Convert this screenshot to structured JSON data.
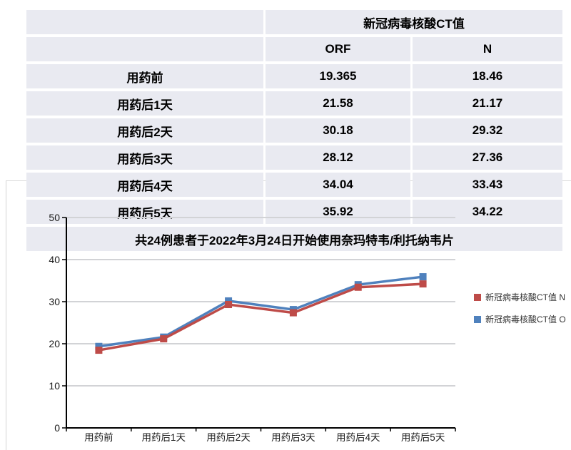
{
  "table": {
    "header_group": "新冠病毒核酸CT值",
    "columns": [
      "ORF",
      "N"
    ],
    "rows": [
      {
        "label": "用药前",
        "orf": "19.365",
        "n": "18.46"
      },
      {
        "label": "用药后1天",
        "orf": "21.58",
        "n": "21.17"
      },
      {
        "label": "用药后2天",
        "orf": "30.18",
        "n": "29.32"
      },
      {
        "label": "用药后3天",
        "orf": "28.12",
        "n": "27.36"
      },
      {
        "label": "用药后4天",
        "orf": "34.04",
        "n": "33.43"
      },
      {
        "label": "用药后5天",
        "orf": "35.92",
        "n": "34.22"
      }
    ],
    "note": "共24例患者于2022年3月24日开始使用奈玛特韦/利托纳韦片"
  },
  "chart_data": {
    "type": "line",
    "title": "",
    "xlabel": "",
    "ylabel": "",
    "categories": [
      "用药前",
      "用药后1天",
      "用药后2天",
      "用药后3天",
      "用药后4天",
      "用药后5天"
    ],
    "series": [
      {
        "name": "新冠病毒核酸CT值 N",
        "color": "#be4b48",
        "values": [
          18.46,
          21.17,
          29.32,
          27.36,
          33.43,
          34.22
        ]
      },
      {
        "name": "新冠病毒核酸CT值 O",
        "color": "#4f81bd",
        "values": [
          19.365,
          21.58,
          30.18,
          28.12,
          34.04,
          35.92
        ]
      }
    ],
    "ylim": [
      0,
      50
    ],
    "yticks": [
      0,
      10,
      20,
      30,
      40,
      50
    ],
    "grid": true,
    "legend_position": "right",
    "marker": "square"
  },
  "colors": {
    "table_row_bg": "#e9eaf1",
    "gridline": "#d2d3d6",
    "axis": "#000000",
    "axis_text": "#1a1a1a",
    "legend_text": "#333333",
    "series_n_red": "#be4b48",
    "series_o_blue": "#4f81bd"
  }
}
